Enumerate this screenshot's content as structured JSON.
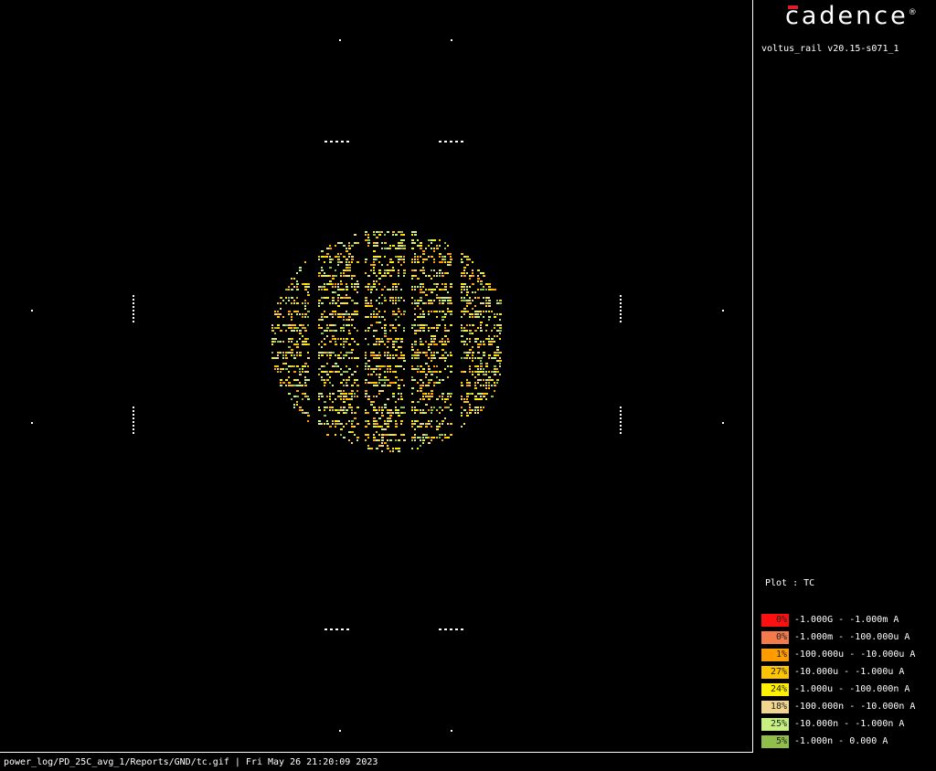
{
  "brand": {
    "name": "cadence",
    "reg_mark": "®",
    "accent_color": "#e21b2c"
  },
  "tool": {
    "version": "voltus_rail v20.15-s071_1"
  },
  "plot": {
    "label": "Plot : TC",
    "background": "#000000",
    "border_color": "#ffffff"
  },
  "legend": {
    "items": [
      {
        "percent": "0%",
        "range": "-1.000G - -1.000m A",
        "color": "#ff1010"
      },
      {
        "percent": "0%",
        "range": "-1.000m - -100.000u A",
        "color": "#f47a4c"
      },
      {
        "percent": "1%",
        "range": "-100.000u - -10.000u A",
        "color": "#ff9c00"
      },
      {
        "percent": "27%",
        "range": "-10.000u - -1.000u A",
        "color": "#ffc400"
      },
      {
        "percent": "24%",
        "range": "-1.000u - -100.000n A",
        "color": "#fff000"
      },
      {
        "percent": "18%",
        "range": "-100.000n - -10.000n A",
        "color": "#f2d690"
      },
      {
        "percent": "25%",
        "range": "-10.000n - -1.000n A",
        "color": "#c6f082"
      },
      {
        "percent": "5%",
        "range": "-1.000n - 0.000 A",
        "color": "#8fbf4a"
      }
    ]
  },
  "footer": {
    "path_and_date": "power_log/PD_25C_avg_1/Reports/GND/tc.gif | Fri May 26 21:20:09 2023"
  }
}
